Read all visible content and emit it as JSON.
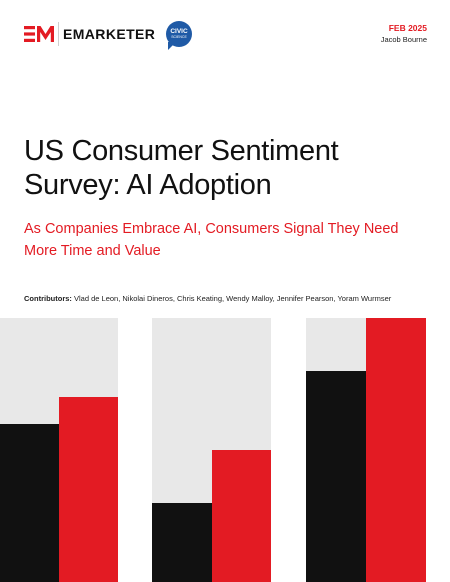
{
  "brand": {
    "wordmark": "EMARKETER",
    "partner_line1": "CIVIC",
    "partner_line2": "SCIENCE",
    "accent_color": "#e31b23",
    "partner_color": "#1f5aa6"
  },
  "meta": {
    "date": "FEB 2025",
    "author": "Jacob Bourne"
  },
  "report": {
    "title": "US Consumer Sentiment Survey: AI Adoption",
    "subtitle": "As Companies Embrace AI, Consumers Signal They Need More Time and Value",
    "contributors_label": "Contributors:",
    "contributors": "Vlad de Leon, Nikolai Dineros, Chris Keating, Wendy Malloy, Jennifer Pearson, Yoram Wurmser"
  },
  "graphic": {
    "colors": {
      "background": "#e8e8e8",
      "black": "#111111",
      "red": "#e31b23"
    },
    "groups": [
      {
        "black_level": 0.6,
        "red_level": 0.7
      },
      {
        "black_level": 0.3,
        "red_level": 0.5
      },
      {
        "black_level": 0.8,
        "red_level": 1.0
      }
    ]
  }
}
